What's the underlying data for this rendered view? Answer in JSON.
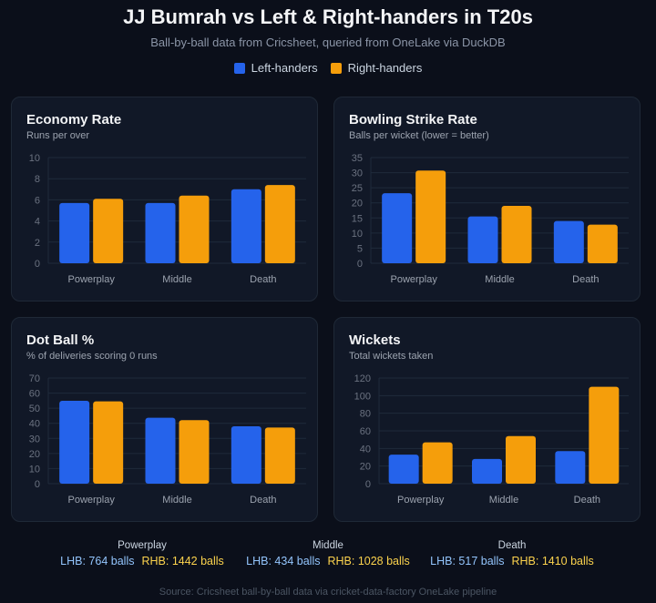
{
  "header": {
    "title": "JJ Bumrah vs Left & Right-handers in T20s",
    "subtitle": "Ball-by-ball data from Cricsheet, queried from OneLake via DuckDB"
  },
  "legend": [
    {
      "label": "Left-handers",
      "color": "#2563eb"
    },
    {
      "label": "Right-handers",
      "color": "#f59e0b"
    }
  ],
  "chart_data": [
    {
      "type": "bar",
      "title": "Economy Rate",
      "subtitle": "Runs per over",
      "categories": [
        "Powerplay",
        "Middle",
        "Death"
      ],
      "series": [
        {
          "name": "Left-handers",
          "values": [
            5.7,
            5.7,
            7.0
          ]
        },
        {
          "name": "Right-handers",
          "values": [
            6.1,
            6.4,
            7.4
          ]
        }
      ],
      "ylim": [
        0,
        10
      ],
      "yticks": [
        0,
        2,
        4,
        6,
        8,
        10
      ],
      "grid": true
    },
    {
      "type": "bar",
      "title": "Bowling Strike Rate",
      "subtitle": "Balls per wicket (lower = better)",
      "categories": [
        "Powerplay",
        "Middle",
        "Death"
      ],
      "series": [
        {
          "name": "Left-handers",
          "values": [
            23.2,
            15.5,
            14.0
          ]
        },
        {
          "name": "Right-handers",
          "values": [
            30.7,
            19.0,
            12.8
          ]
        }
      ],
      "ylim": [
        0,
        35
      ],
      "yticks": [
        0,
        5,
        10,
        15,
        20,
        25,
        30,
        35
      ],
      "grid": true
    },
    {
      "type": "bar",
      "title": "Dot Ball %",
      "subtitle": "% of deliveries scoring 0 runs",
      "categories": [
        "Powerplay",
        "Middle",
        "Death"
      ],
      "series": [
        {
          "name": "Left-handers",
          "values": [
            54.9,
            43.7,
            38.0
          ]
        },
        {
          "name": "Right-handers",
          "values": [
            54.5,
            42.1,
            37.2
          ]
        }
      ],
      "ylim": [
        0,
        70
      ],
      "yticks": [
        0,
        10,
        20,
        30,
        40,
        50,
        60,
        70
      ],
      "grid": true
    },
    {
      "type": "bar",
      "title": "Wickets",
      "subtitle": "Total wickets taken",
      "categories": [
        "Powerplay",
        "Middle",
        "Death"
      ],
      "series": [
        {
          "name": "Left-handers",
          "values": [
            33,
            28,
            37
          ]
        },
        {
          "name": "Right-handers",
          "values": [
            47,
            54,
            110
          ]
        }
      ],
      "ylim": [
        0,
        120
      ],
      "yticks": [
        0,
        20,
        40,
        60,
        80,
        100,
        120
      ],
      "grid": true
    }
  ],
  "footer": {
    "phases": [
      {
        "label": "Powerplay",
        "lhb": "LHB: 764 balls",
        "rhb": "RHB: 1442 balls"
      },
      {
        "label": "Middle",
        "lhb": "LHB: 434 balls",
        "rhb": "RHB: 1028 balls"
      },
      {
        "label": "Death",
        "lhb": "LHB: 517 balls",
        "rhb": "RHB: 1410 balls"
      }
    ],
    "source": "Source: Cricsheet ball-by-ball data via cricket-data-factory OneLake pipeline"
  }
}
